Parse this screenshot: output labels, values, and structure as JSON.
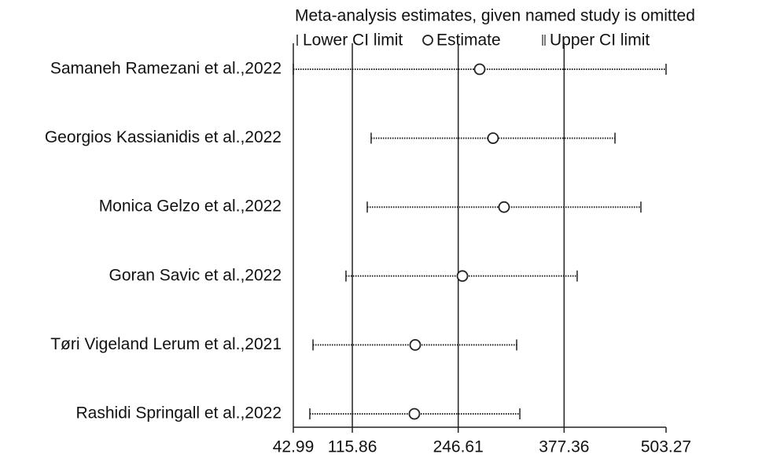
{
  "chart_data": {
    "type": "forest",
    "title": "Meta-analysis estimates, given named study is omitted",
    "categories": [
      "Samaneh Ramezani et al.,2022",
      "Georgios Kassianidis et al.,2022",
      "Monica Gelzo et al.,2022",
      "Goran Savic et al.,2022",
      "Tøri Vigeland Lerum et al.,2021",
      "Rashidi Springall et al.,2022"
    ],
    "series": [
      {
        "name": "Lower CI limit",
        "color": "#222222",
        "values": [
          42.99,
          139.1,
          134.3,
          108.0,
          67.3,
          63.4
        ]
      },
      {
        "name": "Estimate",
        "color": "#222222",
        "values": [
          273.1,
          289.6,
          303.2,
          251.8,
          193.5,
          192.5
        ]
      },
      {
        "name": "Upper CI limit",
        "color": "#222222",
        "values": [
          503.27,
          440.2,
          472.2,
          393.5,
          318.8,
          322.7
        ]
      }
    ],
    "xlim": [
      42.99,
      503.27
    ],
    "xticks": [
      42.99,
      115.86,
      246.61,
      377.36,
      503.27
    ],
    "grid": true
  }
}
